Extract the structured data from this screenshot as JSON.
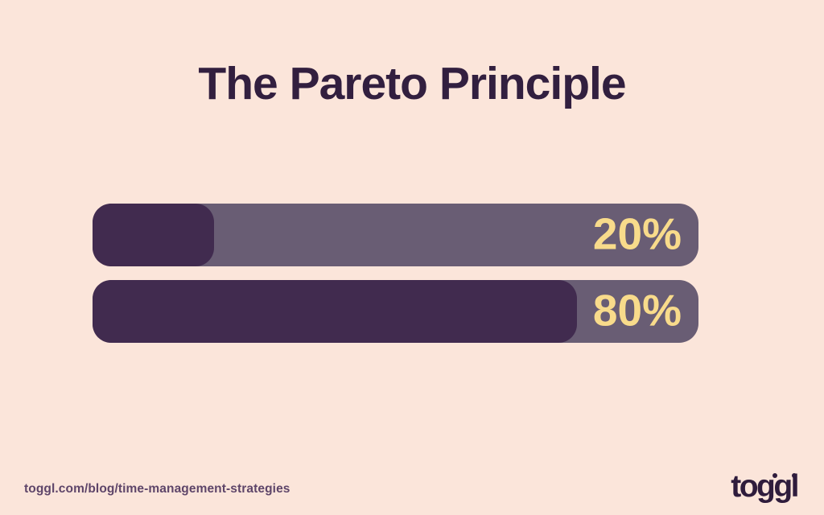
{
  "title": {
    "text": "The Pareto Principle"
  },
  "bars": [
    {
      "label": "20%",
      "value": 20
    },
    {
      "label": "80%",
      "value": 80
    }
  ],
  "footer": {
    "url": "toggl.com/blog/time-management-strategies",
    "logo_text": "toggl"
  },
  "colors": {
    "background": "#fbe5da",
    "title": "#321f3f",
    "bar_track": "#695d74",
    "bar_fill": "#412b4f",
    "value_text": "#f8db8b",
    "url_text": "#5e4569",
    "logo": "#2f1c3c"
  },
  "chart_data": {
    "type": "bar",
    "orientation": "horizontal",
    "title": "The Pareto Principle",
    "categories": [
      "",
      ""
    ],
    "values": [
      20,
      80
    ],
    "value_labels": [
      "20%",
      "80%"
    ],
    "xlim": [
      0,
      100
    ],
    "grid": false,
    "legend": false,
    "annotations": [
      "toggl.com/blog/time-management-strategies",
      "toggl"
    ]
  }
}
